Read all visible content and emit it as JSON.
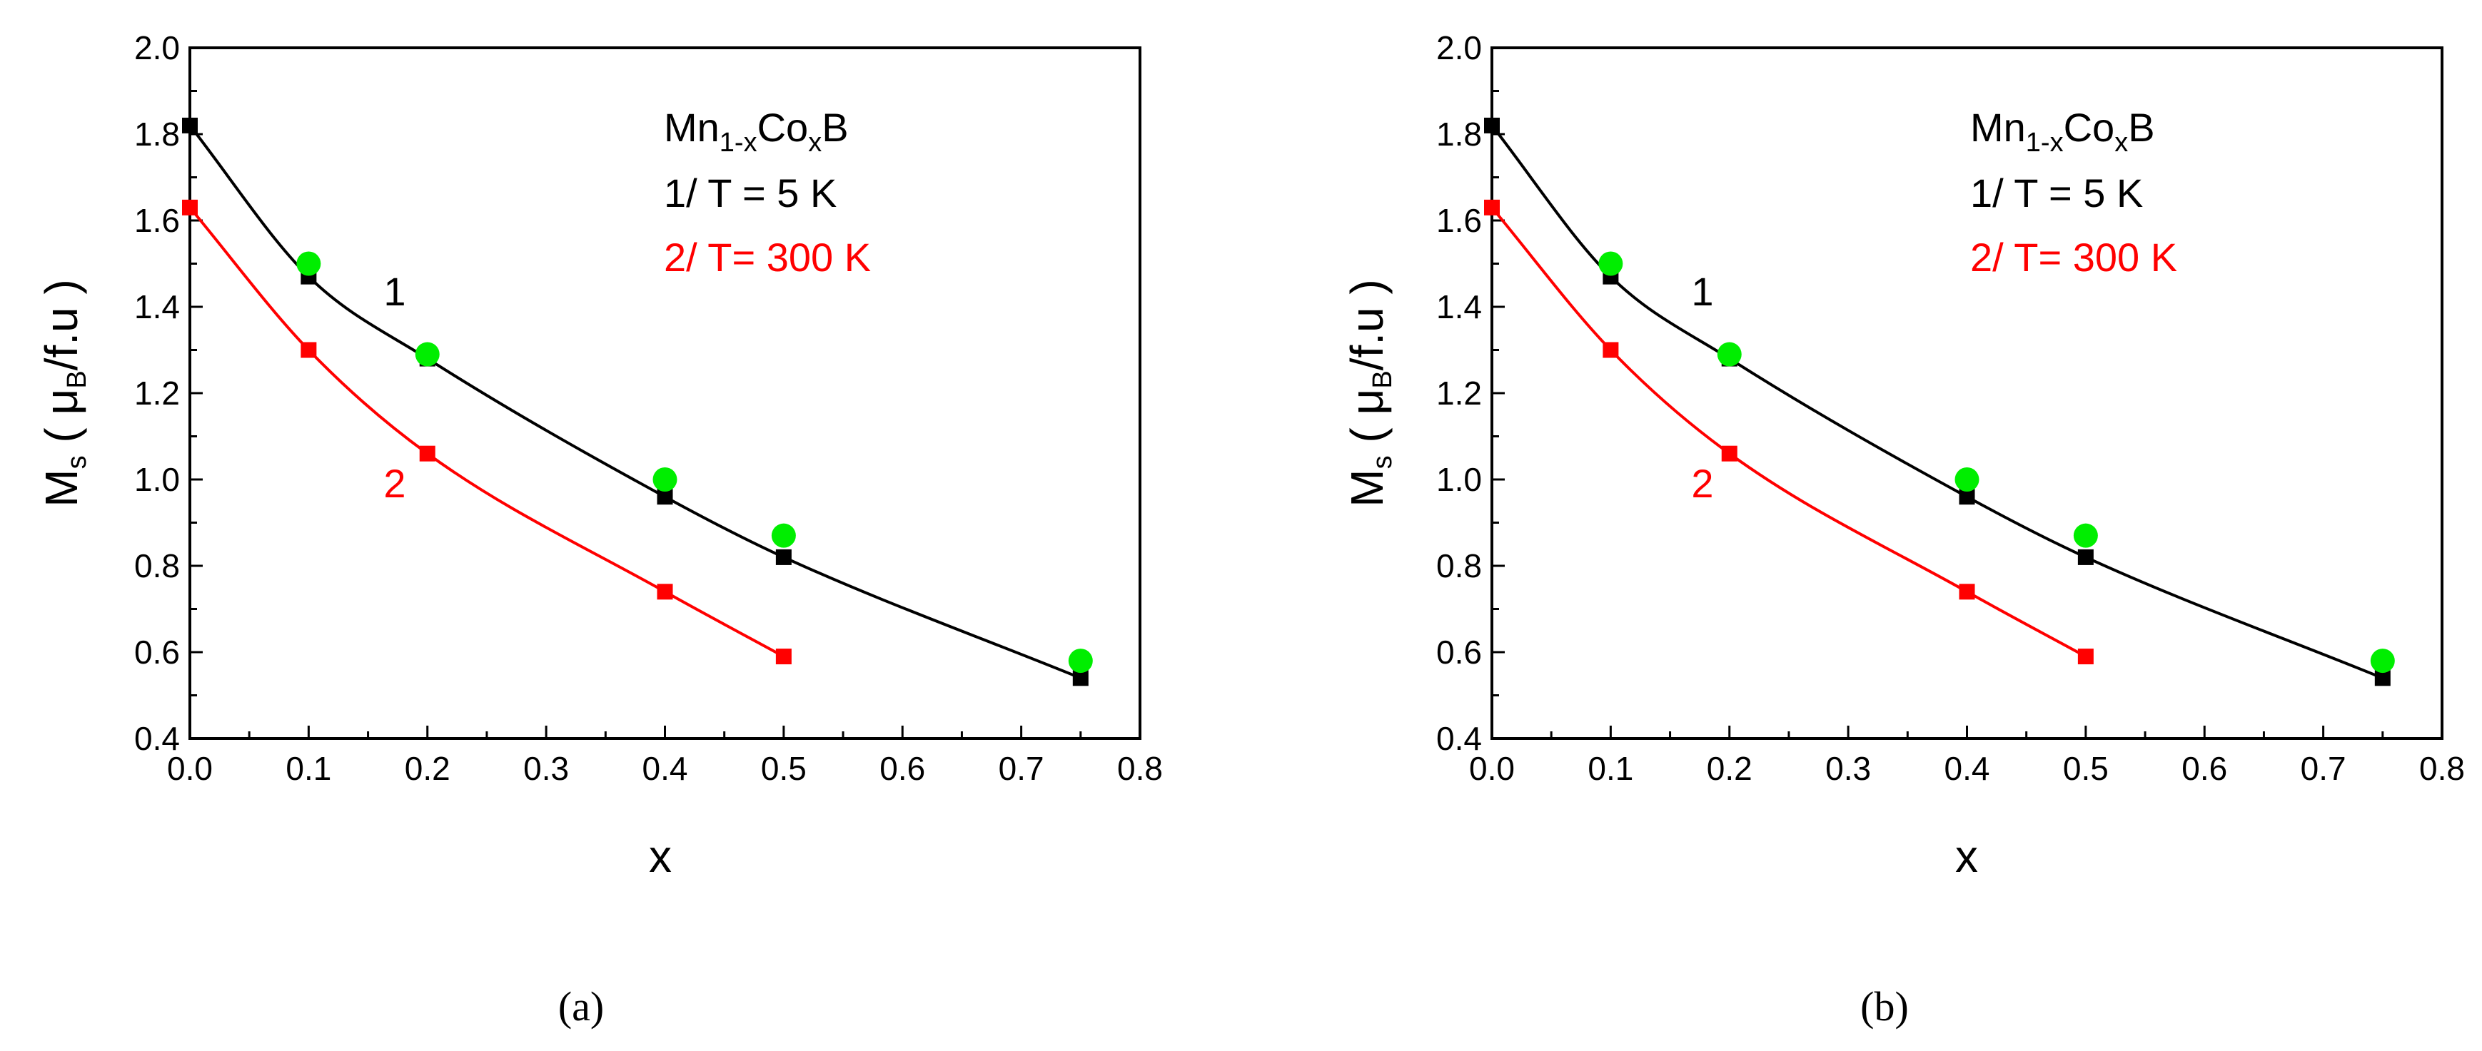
{
  "chart_data": [
    {
      "type": "line",
      "panel_label": "(a)",
      "xlabel": "x",
      "ylabel": {
        "main": "M",
        "sub": "s",
        "open": " ( ",
        "mu": "μ",
        "mu_sub": "B",
        "rest": "/f.u )"
      },
      "xlim": [
        0.0,
        0.8
      ],
      "ylim": [
        0.4,
        2.0
      ],
      "xticks": [
        "0.0",
        "0.1",
        "0.2",
        "0.3",
        "0.4",
        "0.5",
        "0.6",
        "0.7",
        "0.8"
      ],
      "yticks": [
        "0.4",
        "0.6",
        "0.8",
        "1.0",
        "1.2",
        "1.4",
        "1.6",
        "1.8",
        "2.0"
      ],
      "legend": {
        "compound": {
          "a": "Mn",
          "a_sub": "1-x",
          "b": "Co",
          "b_sub": "x",
          "c": "B"
        },
        "line1": "1/ T = 5 K",
        "line2": "2/ T= 300 K"
      },
      "curve_labels": {
        "c1": "1",
        "c2": "2"
      },
      "colors": {
        "series1": "#000000",
        "series2": "#ff0000",
        "green": "#00ee00"
      },
      "series": [
        {
          "name": "1/ T = 5 K",
          "x": [
            0.0,
            0.1,
            0.2,
            0.4,
            0.5,
            0.75
          ],
          "y": [
            1.82,
            1.47,
            1.28,
            0.96,
            0.82,
            0.54
          ]
        },
        {
          "name": "2/ T= 300 K",
          "x": [
            0.0,
            0.1,
            0.2,
            0.4,
            0.5
          ],
          "y": [
            1.63,
            1.3,
            1.06,
            0.74,
            0.59
          ]
        },
        {
          "name": "green circles",
          "x": [
            0.1,
            0.2,
            0.4,
            0.5,
            0.75
          ],
          "y": [
            1.5,
            1.29,
            1.0,
            0.87,
            0.58
          ]
        }
      ]
    },
    {
      "type": "line",
      "panel_label": "(b)",
      "xlabel": "x",
      "ylabel": {
        "main": "M",
        "sub": "s",
        "open": " ( ",
        "mu": "μ",
        "mu_sub": "B",
        "rest": "/f.u )"
      },
      "xlim": [
        0.0,
        0.8
      ],
      "ylim": [
        0.4,
        2.0
      ],
      "xticks": [
        "0.0",
        "0.1",
        "0.2",
        "0.3",
        "0.4",
        "0.5",
        "0.6",
        "0.7",
        "0.8"
      ],
      "yticks": [
        "0.4",
        "0.6",
        "0.8",
        "1.0",
        "1.2",
        "1.4",
        "1.6",
        "1.8",
        "2.0"
      ],
      "legend": {
        "compound": {
          "a": "Mn",
          "a_sub": "1-x",
          "b": "Co",
          "b_sub": "x",
          "c": "B"
        },
        "line1": "1/ T = 5 K",
        "line2": "2/ T= 300 K"
      },
      "curve_labels": {
        "c1": "1",
        "c2": "2"
      },
      "colors": {
        "series1": "#000000",
        "series2": "#ff0000",
        "green": "#00ee00"
      },
      "series": [
        {
          "name": "1/ T = 5 K",
          "x": [
            0.0,
            0.1,
            0.2,
            0.4,
            0.5,
            0.75
          ],
          "y": [
            1.82,
            1.47,
            1.28,
            0.96,
            0.82,
            0.54
          ]
        },
        {
          "name": "2/ T= 300 K",
          "x": [
            0.0,
            0.1,
            0.2,
            0.4,
            0.5
          ],
          "y": [
            1.63,
            1.3,
            1.06,
            0.74,
            0.59
          ]
        },
        {
          "name": "green circles",
          "x": [
            0.1,
            0.2,
            0.4,
            0.5,
            0.75
          ],
          "y": [
            1.5,
            1.29,
            1.0,
            0.87,
            0.58
          ]
        }
      ]
    }
  ]
}
